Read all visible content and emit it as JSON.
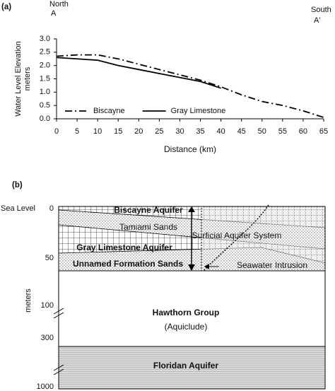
{
  "chart_data": {
    "type": "line",
    "panel_label": "(a)",
    "annotations": [
      "North",
      "A",
      "South",
      "A'"
    ],
    "y_label_lines": [
      "Water Level Elevation",
      "meters"
    ],
    "x_label": "Distance (km)",
    "x": [
      0,
      5,
      10,
      15,
      20,
      25,
      30,
      35,
      40,
      45,
      50,
      55,
      60,
      65
    ],
    "series": [
      {
        "name": "Biscayne",
        "color": "#000000",
        "style": "dash-dot",
        "values": [
          2.35,
          2.4,
          2.4,
          2.25,
          2.05,
          1.85,
          1.65,
          1.45,
          1.2,
          0.9,
          0.65,
          0.5,
          0.3,
          0.05
        ]
      },
      {
        "name": "Gray Limestone",
        "color": "#000000",
        "style": "solid",
        "values": [
          2.3,
          2.25,
          2.2,
          2.0,
          1.85,
          1.7,
          1.55,
          1.4,
          1.15,
          null,
          null,
          null,
          null,
          null
        ]
      }
    ],
    "xlim": [
      0,
      65
    ],
    "xticks": [
      0,
      5,
      10,
      15,
      20,
      25,
      30,
      35,
      40,
      45,
      50,
      55,
      60,
      65
    ],
    "ylim": [
      0,
      3
    ],
    "yticks": [
      {
        "value": 0,
        "label": "0.0"
      },
      0.5,
      {
        "value": 1,
        "label": "1.0"
      },
      1.5,
      {
        "value": 2,
        "label": "2.0"
      },
      2.5,
      {
        "value": 3,
        "label": "3.0"
      }
    ],
    "grid": false,
    "legend": "bottom-left"
  },
  "diagram": {
    "panel_label": "(b)",
    "sea_level": "Sea Level",
    "depth_label": "meters",
    "depth_ticks": [
      "0",
      "50",
      "100",
      "300",
      "1000"
    ],
    "labels": [
      "Biscayne Aquifer",
      "Tamiami Sands",
      "Surficial Aquifer System",
      "Gray Limestone Aquifer",
      "Unnamed Formation Sands",
      "Seawater Intrusion",
      "Hawthorn Group",
      "(Aquiclude)",
      "Floridan Aquifer"
    ]
  }
}
